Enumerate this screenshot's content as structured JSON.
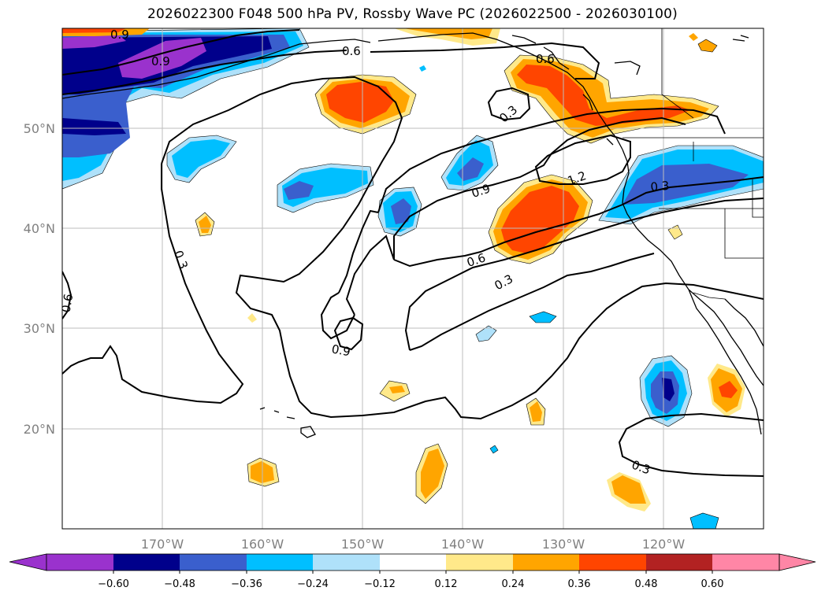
{
  "title": "2026022300 F048 500 hPa PV, Rossby Wave PC (2026022500 - 2026030100)",
  "map": {
    "lat_labels": [
      {
        "value": 50,
        "text": "50°N"
      },
      {
        "value": 40,
        "text": "40°N"
      },
      {
        "value": 30,
        "text": "30°N"
      },
      {
        "value": 20,
        "text": "20°N"
      }
    ],
    "lon_labels": [
      {
        "value": -170,
        "text": "170°W"
      },
      {
        "value": -160,
        "text": "160°W"
      },
      {
        "value": -150,
        "text": "150°W"
      },
      {
        "value": -140,
        "text": "140°W"
      },
      {
        "value": -130,
        "text": "130°W"
      },
      {
        "value": -120,
        "text": "120°W"
      }
    ],
    "extent": {
      "lon_min": -180,
      "lon_max": -110,
      "lat_min": 10,
      "lat_max": 60
    },
    "contour_labels": [
      "0.9",
      "0.9",
      "0.6",
      "0.6",
      "0.3",
      "1.2",
      "0.9",
      "0.3",
      "0.6",
      "0.3",
      "0.3",
      "0.9",
      "0.6",
      "0.3"
    ]
  },
  "colorbar": {
    "levels": [
      -0.6,
      -0.48,
      -0.36,
      -0.24,
      -0.12,
      0.12,
      0.24,
      0.36,
      0.48,
      0.6
    ],
    "tick_labels": [
      "−0.60",
      "−0.48",
      "−0.36",
      "−0.24",
      "−0.12",
      "0.12",
      "0.24",
      "0.36",
      "0.48",
      "0.60"
    ],
    "colors": [
      "#9a32cd",
      "#00008b",
      "#3a5fcd",
      "#00bfff",
      "#afe1fa",
      "#ffffff",
      "#ffe98a",
      "#ffa500",
      "#ff4500",
      "#b22222",
      "#ff86a6"
    ]
  }
}
